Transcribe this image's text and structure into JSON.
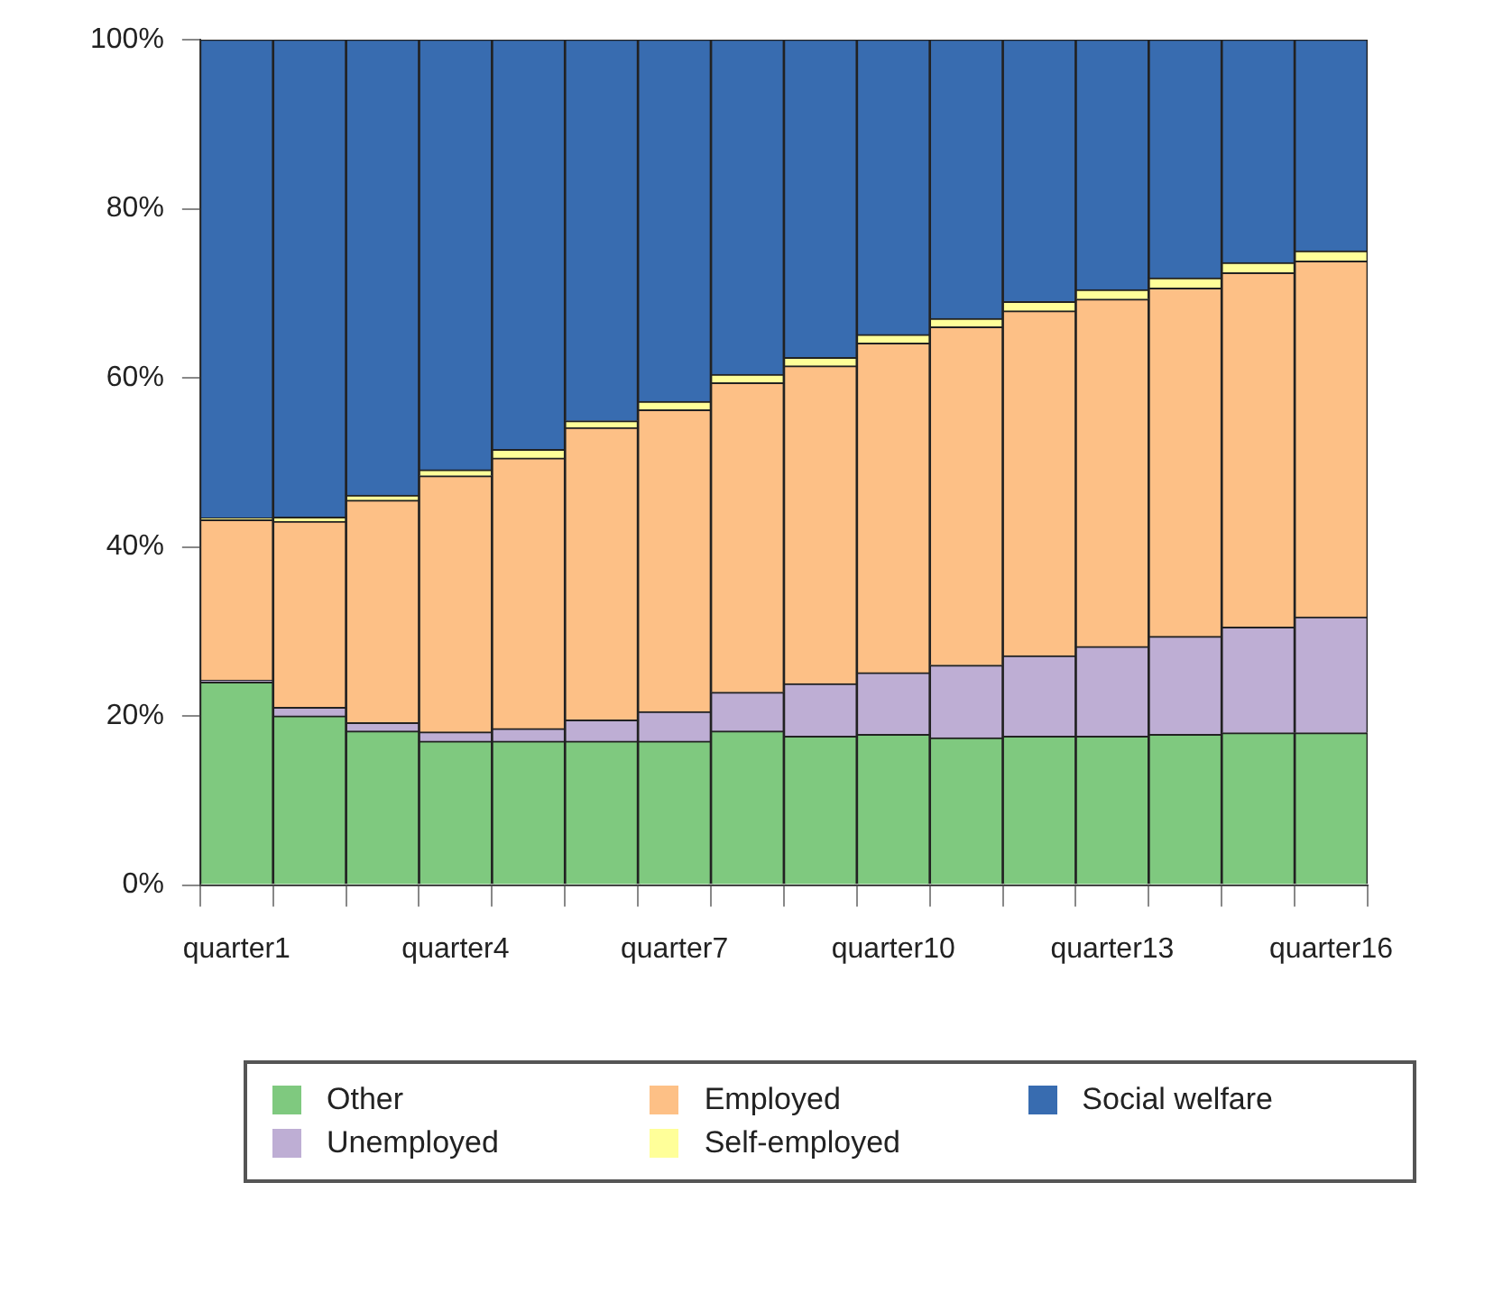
{
  "chart_data": {
    "type": "bar",
    "stacked": true,
    "categories": [
      "quarter1",
      null,
      null,
      "quarter4",
      null,
      null,
      "quarter7",
      null,
      null,
      "quarter10",
      null,
      null,
      "quarter13",
      null,
      null,
      "quarter16"
    ],
    "series": [
      {
        "name": "Other",
        "color": "#7fc97f",
        "values": [
          24,
          20,
          18.2,
          17,
          17,
          17,
          17,
          18.2,
          17.6,
          17.8,
          17.4,
          17.6,
          17.6,
          17.8,
          18,
          18
        ]
      },
      {
        "name": "Unemployed",
        "color": "#beaed4",
        "values": [
          0.2,
          1,
          1,
          1.1,
          1.5,
          2.5,
          3.5,
          4.6,
          6.2,
          7.3,
          8.6,
          9.5,
          10.6,
          11.6,
          12.5,
          13.7
        ]
      },
      {
        "name": "Employed",
        "color": "#fdc086",
        "values": [
          19,
          22,
          26.3,
          30.3,
          32,
          34.6,
          35.7,
          36.6,
          37.6,
          39,
          40,
          40.8,
          41.1,
          41.2,
          41.9,
          42.1
        ]
      },
      {
        "name": "Self-employed",
        "color": "#ffff99",
        "values": [
          0.2,
          0.5,
          0.6,
          0.7,
          1,
          0.8,
          1,
          1,
          1,
          1,
          1,
          1.1,
          1.1,
          1.2,
          1.2,
          1.2
        ]
      },
      {
        "name": "Social welfare",
        "color": "#386cb0",
        "values": [
          56.6,
          56.5,
          53.9,
          50.9,
          48.5,
          45.1,
          42.8,
          39.6,
          37.6,
          34.9,
          33,
          31,
          29.6,
          28.2,
          26.4,
          25
        ]
      }
    ],
    "ylim": [
      0,
      100
    ],
    "yticks": [
      {
        "value": 0,
        "label": "0%"
      },
      {
        "value": 20,
        "label": "20%"
      },
      {
        "value": 40,
        "label": "40%"
      },
      {
        "value": 60,
        "label": "60%"
      },
      {
        "value": 80,
        "label": "80%"
      },
      {
        "value": 100,
        "label": "100%"
      }
    ],
    "grid": false,
    "legend": "bottom"
  }
}
